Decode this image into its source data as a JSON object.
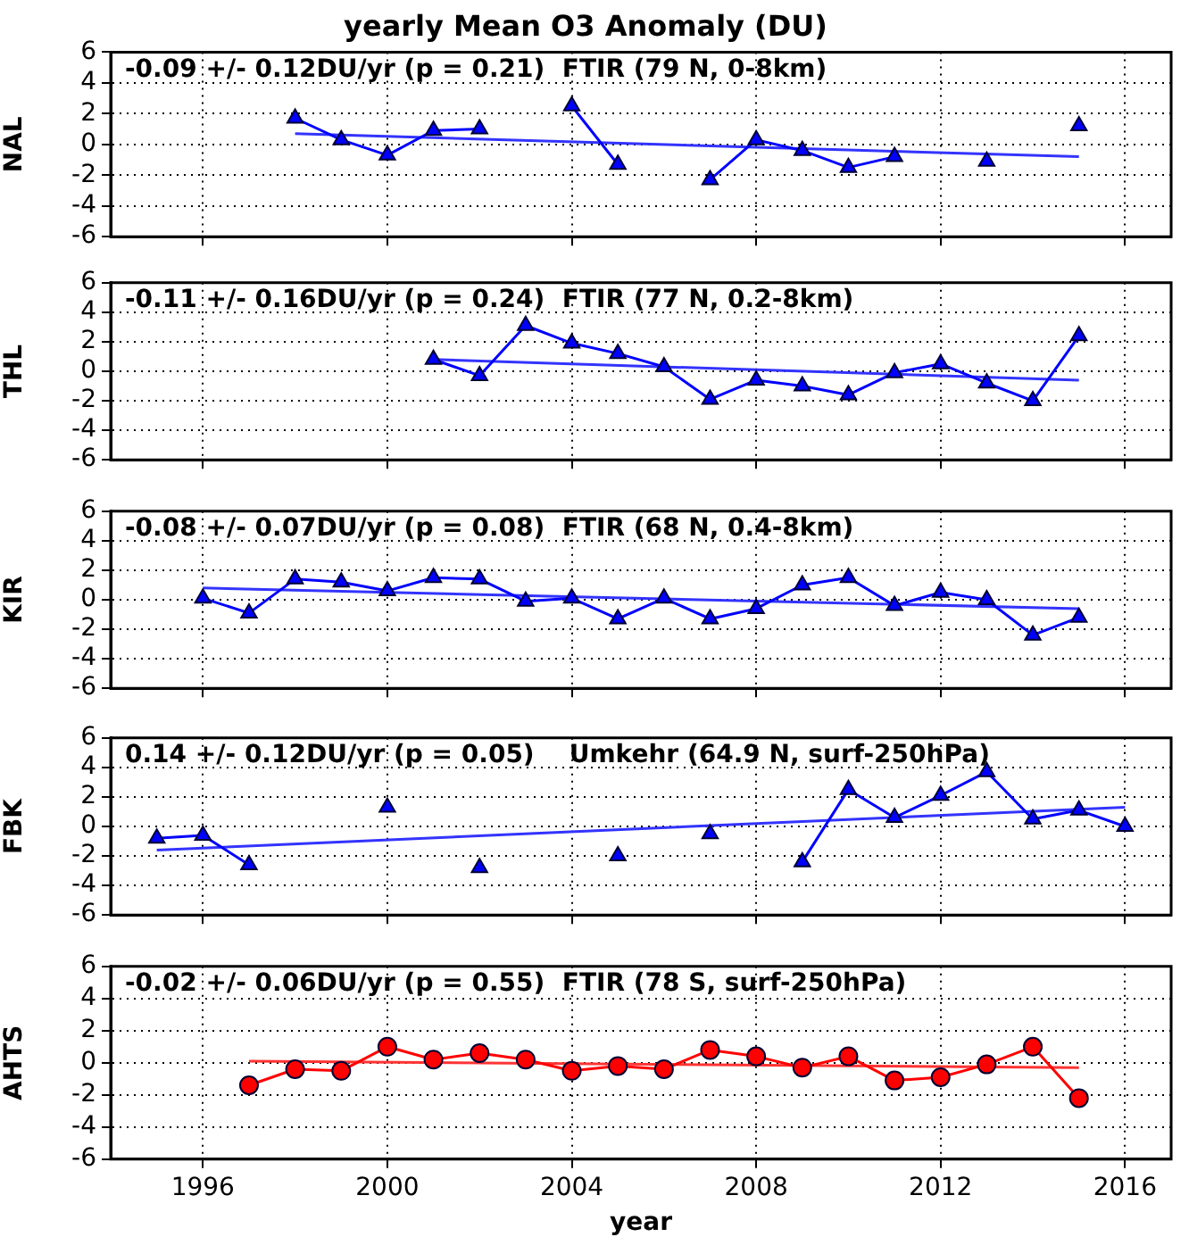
{
  "chart_data": [
    {
      "type": "line",
      "title": "yearly Mean O3 Anomaly (DU)",
      "ylabel": "NAL",
      "annotations": [
        "-0.09 +/- 0.12DU/yr (p = 0.21)  FTIR (79 N, 0-8km)"
      ],
      "x": [
        1998,
        1999,
        2000,
        2001,
        2002,
        2003,
        2004,
        2005,
        2006,
        2007,
        2008,
        2009,
        2010,
        2011,
        2012,
        2013,
        2014,
        2015
      ],
      "marker": "triangle",
      "series": [
        {
          "color": "#0000ff",
          "values": [
            1.7,
            0.3,
            -0.7,
            0.9,
            1.0,
            null,
            2.5,
            -1.3,
            null,
            -2.3,
            0.3,
            -0.4,
            -1.5,
            -0.8,
            null,
            -1.1,
            null,
            1.2
          ]
        },
        {
          "type": "line",
          "marker": "none",
          "color": "#3333ff",
          "x": [
            1998,
            2015
          ],
          "values": [
            0.7,
            -0.8
          ]
        }
      ],
      "xlim": [
        1994,
        2017
      ],
      "xticks": [
        1996,
        2000,
        2004,
        2008,
        2012,
        2016
      ],
      "ylim": [
        -6,
        6
      ],
      "yticks": [
        -6,
        -4,
        -2,
        0,
        2,
        4,
        6
      ],
      "grid": true,
      "tick_labels": "y"
    },
    {
      "type": "line",
      "ylabel": "THL",
      "annotations": [
        "-0.11 +/- 0.16DU/yr (p = 0.24)  FTIR (77 N, 0.2-8km)"
      ],
      "x": [
        2001,
        2002,
        2003,
        2004,
        2005,
        2006,
        2007,
        2008,
        2009,
        2010,
        2011,
        2012,
        2013,
        2014,
        2015
      ],
      "marker": "triangle",
      "series": [
        {
          "color": "#0000ff",
          "values": [
            0.8,
            -0.3,
            3.1,
            1.9,
            1.2,
            0.3,
            -1.9,
            -0.6,
            -1.0,
            -1.6,
            -0.1,
            0.5,
            -0.8,
            -2.0,
            2.4
          ]
        },
        {
          "type": "line",
          "marker": "none",
          "color": "#3333ff",
          "x": [
            2001,
            2015
          ],
          "values": [
            0.8,
            -0.6
          ]
        }
      ],
      "xlim": [
        1994,
        2017
      ],
      "xticks": [
        1996,
        2000,
        2004,
        2008,
        2012,
        2016
      ],
      "ylim": [
        -6,
        6
      ],
      "yticks": [
        -6,
        -4,
        -2,
        0,
        2,
        4,
        6
      ],
      "grid": true,
      "tick_labels": "y"
    },
    {
      "type": "line",
      "ylabel": "KIR",
      "annotations": [
        "-0.08 +/- 0.07DU/yr (p = 0.08)  FTIR (68 N, 0.4-8km)"
      ],
      "x": [
        1996,
        1997,
        1998,
        1999,
        2000,
        2001,
        2002,
        2003,
        2004,
        2005,
        2006,
        2007,
        2008,
        2009,
        2010,
        2011,
        2012,
        2013,
        2014,
        2015
      ],
      "marker": "triangle",
      "series": [
        {
          "color": "#0000ff",
          "values": [
            0.1,
            -0.9,
            1.4,
            1.2,
            0.6,
            1.5,
            1.4,
            -0.1,
            0.1,
            -1.3,
            0.1,
            -1.3,
            -0.6,
            1.0,
            1.5,
            -0.4,
            0.5,
            0.0,
            -2.4,
            -1.2
          ]
        },
        {
          "type": "line",
          "marker": "none",
          "color": "#3333ff",
          "x": [
            1996,
            2015
          ],
          "values": [
            0.8,
            -0.6
          ]
        }
      ],
      "xlim": [
        1994,
        2017
      ],
      "xticks": [
        1996,
        2000,
        2004,
        2008,
        2012,
        2016
      ],
      "ylim": [
        -6,
        6
      ],
      "yticks": [
        -6,
        -4,
        -2,
        0,
        2,
        4,
        6
      ],
      "grid": true,
      "tick_labels": "y"
    },
    {
      "type": "line",
      "ylabel": "FBK",
      "annotations": [
        "0.14 +/- 0.12DU/yr (p = 0.05)    Umkehr (64.9 N, surf-250hPa)"
      ],
      "x": [
        1995,
        1996,
        1997,
        1998,
        1999,
        2000,
        2001,
        2002,
        2003,
        2004,
        2005,
        2006,
        2007,
        2008,
        2009,
        2010,
        2011,
        2012,
        2013,
        2014,
        2015,
        2016
      ],
      "marker": "triangle",
      "series": [
        {
          "color": "#0000ff",
          "values": [
            -0.8,
            -0.6,
            -2.6,
            null,
            null,
            1.3,
            null,
            -2.8,
            null,
            null,
            -2.0,
            null,
            -0.5,
            null,
            -2.4,
            2.5,
            0.6,
            2.1,
            3.7,
            0.5,
            1.1,
            0.0
          ]
        },
        {
          "type": "line",
          "marker": "none",
          "color": "#3333ff",
          "x": [
            1995,
            2016
          ],
          "values": [
            -1.6,
            1.3
          ]
        }
      ],
      "xlim": [
        1994,
        2017
      ],
      "xticks": [
        1996,
        2000,
        2004,
        2008,
        2012,
        2016
      ],
      "ylim": [
        -6,
        6
      ],
      "yticks": [
        -6,
        -4,
        -2,
        0,
        2,
        4,
        6
      ],
      "grid": true,
      "tick_labels": "y"
    },
    {
      "type": "line",
      "ylabel": "AHTS",
      "xlabel": "year",
      "annotations": [
        "-0.02 +/- 0.06DU/yr (p = 0.55)  FTIR (78 S, surf-250hPa)"
      ],
      "x": [
        1997,
        1998,
        1999,
        2000,
        2001,
        2002,
        2003,
        2004,
        2005,
        2006,
        2007,
        2008,
        2009,
        2010,
        2011,
        2012,
        2013,
        2014,
        2015
      ],
      "marker": "circle",
      "series": [
        {
          "color": "#ff0000",
          "values": [
            -1.4,
            -0.4,
            -0.5,
            1.0,
            0.2,
            0.6,
            0.2,
            -0.5,
            -0.2,
            -0.4,
            0.8,
            0.4,
            -0.3,
            0.4,
            -1.1,
            -0.9,
            -0.1,
            1.0,
            -2.2
          ]
        },
        {
          "type": "line",
          "marker": "none",
          "color": "#ff3333",
          "x": [
            1997,
            2015
          ],
          "values": [
            0.1,
            -0.3
          ]
        }
      ],
      "xlim": [
        1994,
        2017
      ],
      "xticks": [
        1996,
        2000,
        2004,
        2008,
        2012,
        2016
      ],
      "ylim": [
        -6,
        6
      ],
      "yticks": [
        -6,
        -4,
        -2,
        0,
        2,
        4,
        6
      ],
      "grid": true
    }
  ]
}
